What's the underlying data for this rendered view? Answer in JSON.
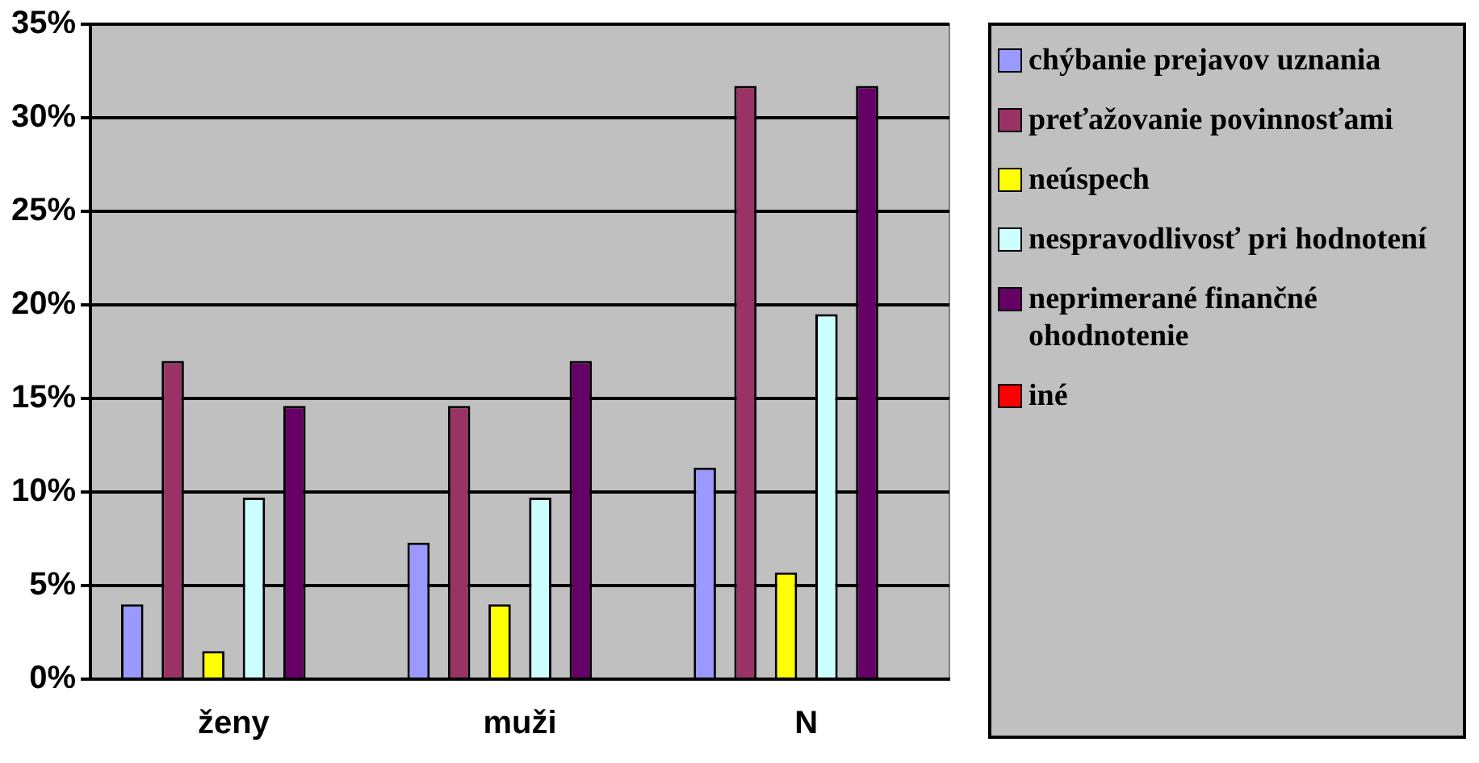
{
  "chart_data": {
    "type": "bar",
    "categories": [
      "ženy",
      "muži",
      "N"
    ],
    "series": [
      {
        "name": "chýbanie prejavov uznania",
        "color": "#9999ff",
        "values": [
          4,
          7.3,
          11.3
        ]
      },
      {
        "name": "preťažovanie povinnosťami",
        "color": "#993366",
        "values": [
          17,
          14.6,
          31.7
        ]
      },
      {
        "name": "neúspech",
        "color": "#ffff00",
        "values": [
          1.5,
          4,
          5.7
        ]
      },
      {
        "name": "nespravodlivosť pri hodnotení",
        "color": "#ccffff",
        "values": [
          9.7,
          9.7,
          19.5
        ]
      },
      {
        "name": "neprimerané finančné ohodnotenie",
        "color": "#660066",
        "values": [
          14.6,
          17,
          31.7
        ]
      },
      {
        "name": "iné",
        "color": "#ff0000",
        "values": [
          0,
          0,
          0
        ]
      }
    ],
    "ylim": [
      0,
      35
    ],
    "yticks": [
      {
        "value": 0,
        "label": "0%"
      },
      {
        "value": 5,
        "label": "5%"
      },
      {
        "value": 10,
        "label": "10%"
      },
      {
        "value": 15,
        "label": "15%"
      },
      {
        "value": 20,
        "label": "20%"
      },
      {
        "value": 25,
        "label": "25%"
      },
      {
        "value": 30,
        "label": "30%"
      },
      {
        "value": 35,
        "label": "35%"
      }
    ],
    "grid": "y",
    "legend": "right"
  }
}
